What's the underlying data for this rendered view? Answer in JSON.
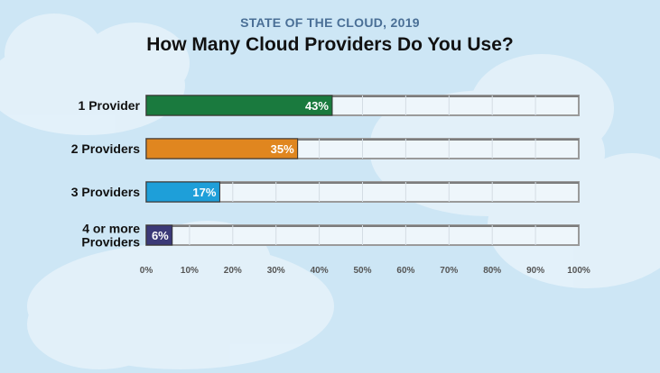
{
  "header": {
    "kicker": "STATE OF THE CLOUD, 2019",
    "title": "How Many Cloud Providers Do You Use?"
  },
  "colors": {
    "background": "#cde6f5",
    "track": "#eef6fb",
    "series": [
      "#1a7a3e",
      "#e0861f",
      "#1e9fd9",
      "#3b3977"
    ]
  },
  "chart_data": {
    "type": "bar",
    "orientation": "horizontal",
    "title": "How Many Cloud Providers Do You Use?",
    "subtitle": "STATE OF THE CLOUD, 2019",
    "categories": [
      [
        "1 Provider"
      ],
      [
        "2 Providers"
      ],
      [
        "3 Providers"
      ],
      [
        "4 or more",
        "Providers"
      ]
    ],
    "values": [
      43,
      35,
      17,
      6
    ],
    "value_labels": [
      "43%",
      "35%",
      "17%",
      "6%"
    ],
    "xlim": [
      0,
      100
    ],
    "xticks": [
      "0%",
      "10%",
      "20%",
      "30%",
      "40%",
      "50%",
      "60%",
      "70%",
      "80%",
      "90%",
      "100%"
    ],
    "xlabel": "",
    "ylabel": "",
    "grid": true
  }
}
